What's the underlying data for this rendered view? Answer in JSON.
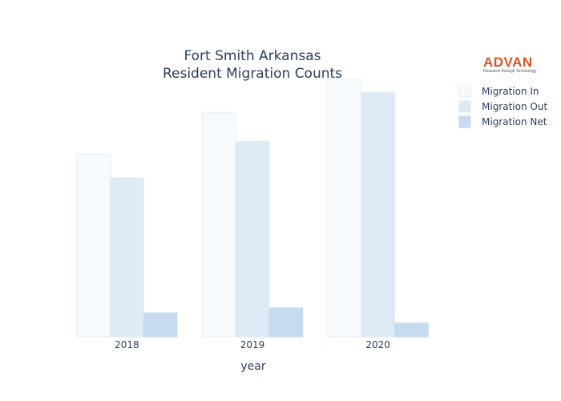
{
  "logo": {
    "name": "ADVAN",
    "tagline": "Research through Technology",
    "color": "#e2531f"
  },
  "chart_data": {
    "type": "bar",
    "title": [
      "Fort Smith Arkansas",
      "Resident Migration Counts"
    ],
    "xlabel": "year",
    "ylabel": "",
    "categories": [
      "2018",
      "2019",
      "2020"
    ],
    "ylim": [
      0,
      3100
    ],
    "yaxis_visible": false,
    "grid": false,
    "legend_position": "top-right",
    "series": [
      {
        "name": "Migration In",
        "color": "#f7fbff",
        "stroke": "#e3edf8",
        "values": [
          2200,
          2710,
          3110
        ]
      },
      {
        "name": "Migration Out",
        "color": "#deebf7",
        "stroke": "#deebf7",
        "values": [
          1920,
          2360,
          2950
        ]
      },
      {
        "name": "Migration Net",
        "color": "#c6dbef",
        "stroke": "#c6dbef",
        "values": [
          290,
          350,
          165
        ]
      }
    ]
  }
}
